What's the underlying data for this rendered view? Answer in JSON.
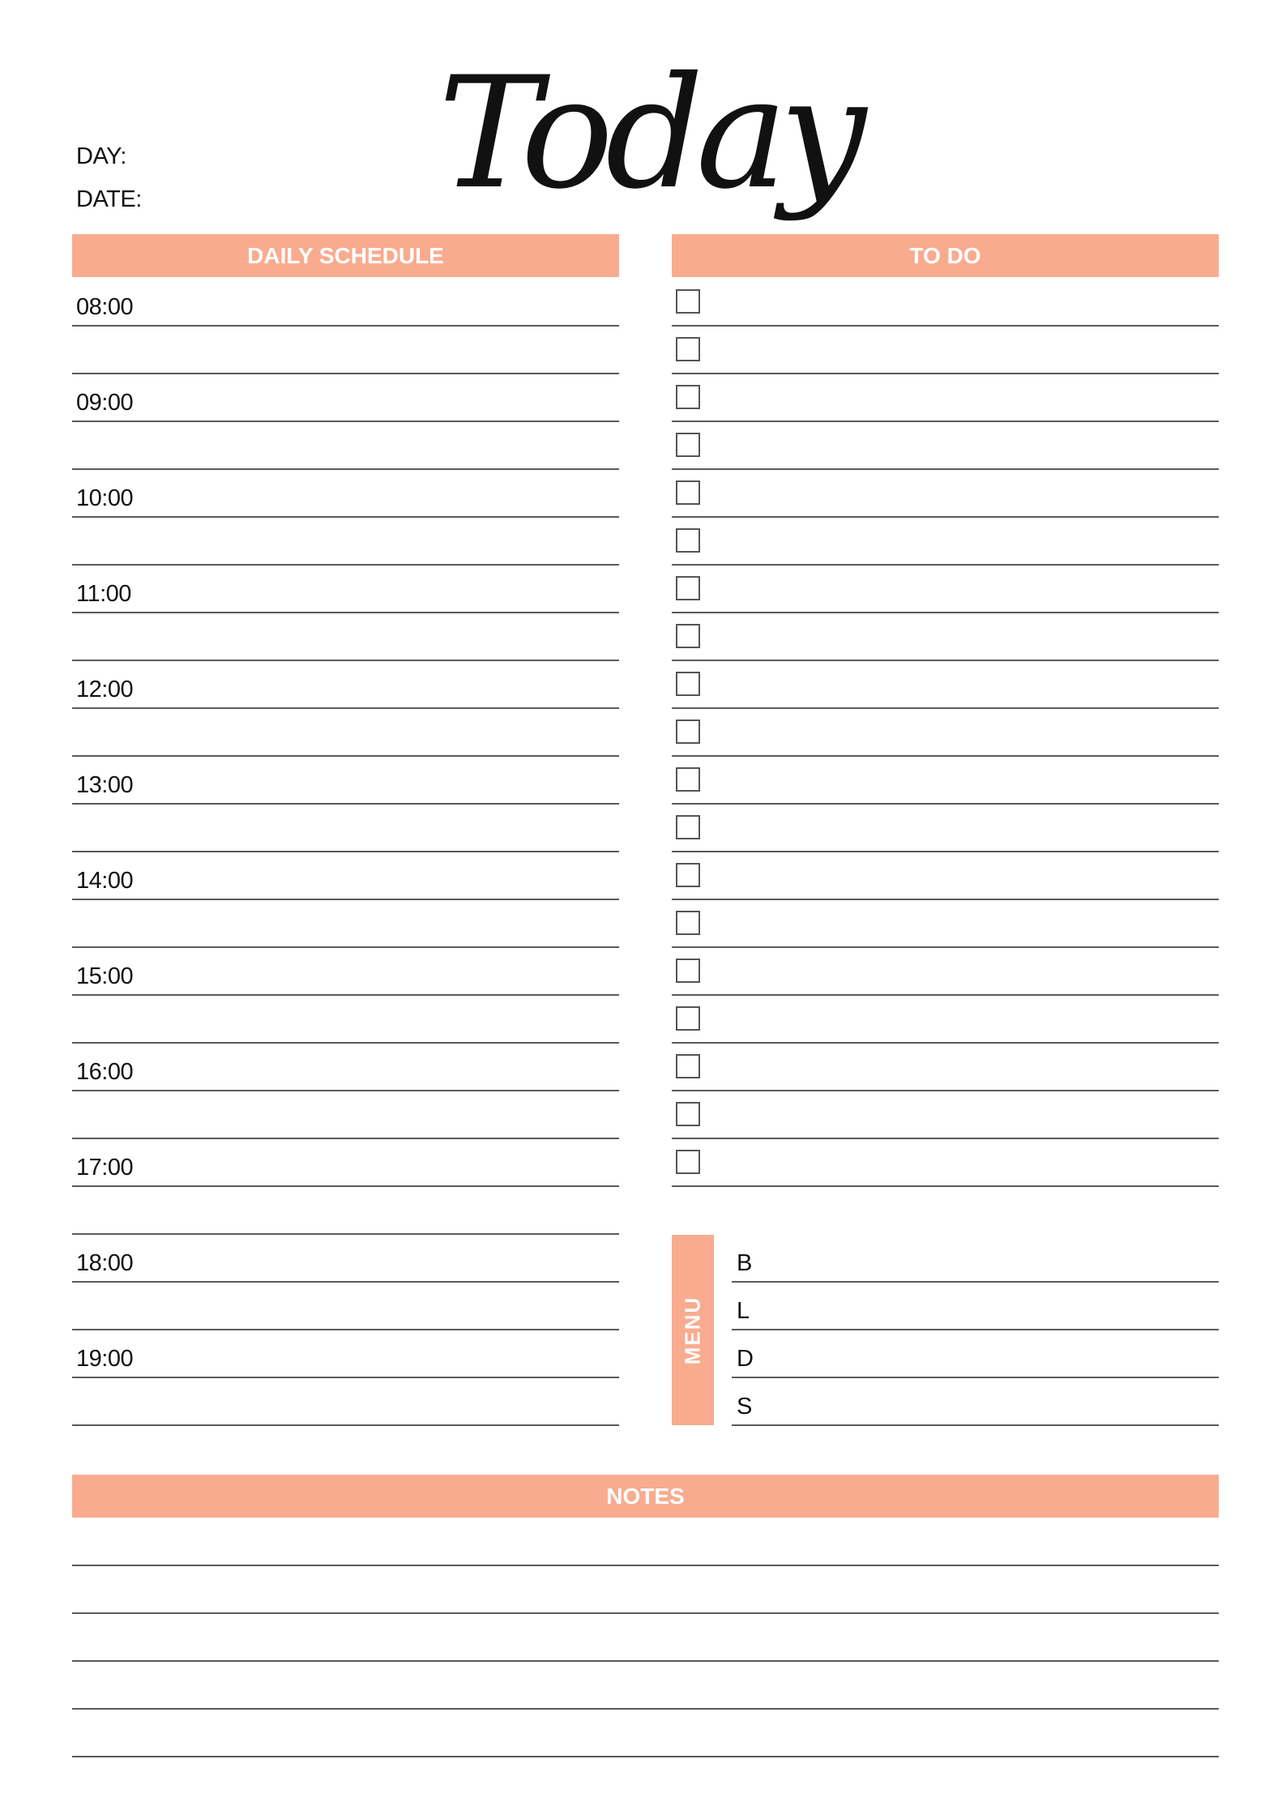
{
  "header": {
    "title": "Today",
    "day_label": "DAY:",
    "date_label": "DATE:"
  },
  "schedule": {
    "heading": "DAILY SCHEDULE",
    "times": [
      "08:00",
      "09:00",
      "10:00",
      "11:00",
      "12:00",
      "13:00",
      "14:00",
      "15:00",
      "16:00",
      "17:00",
      "18:00",
      "19:00"
    ]
  },
  "todo": {
    "heading": "TO DO"
  },
  "menu": {
    "heading": "MENU",
    "meals": [
      "B",
      "L",
      "D",
      "S"
    ]
  },
  "notes": {
    "heading": "NOTES"
  },
  "colors": {
    "accent": "#F9AB8F",
    "rule": "#5a5a5a"
  }
}
